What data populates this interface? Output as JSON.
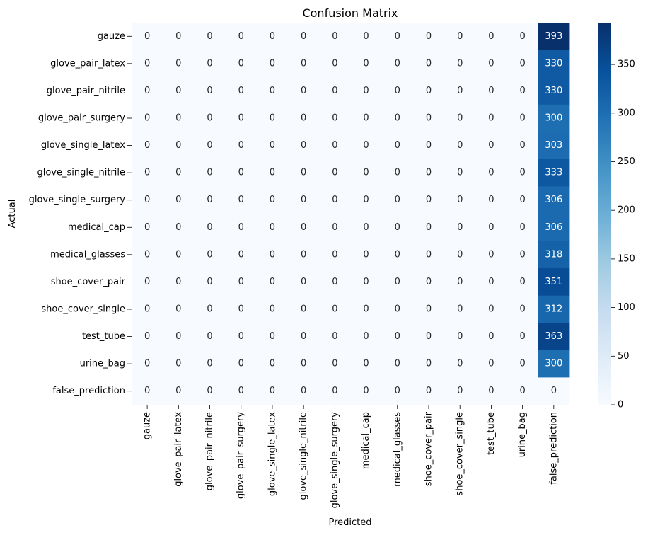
{
  "chart_data": {
    "type": "heatmap",
    "title": "Confusion Matrix",
    "xlabel": "Predicted",
    "ylabel": "Actual",
    "x_categories": [
      "gauze",
      "glove_pair_latex",
      "glove_pair_nitrile",
      "glove_pair_surgery",
      "glove_single_latex",
      "glove_single_nitrile",
      "glove_single_surgery",
      "medical_cap",
      "medical_glasses",
      "shoe_cover_pair",
      "shoe_cover_single",
      "test_tube",
      "urine_bag",
      "false_prediction"
    ],
    "y_categories": [
      "gauze",
      "glove_pair_latex",
      "glove_pair_nitrile",
      "glove_pair_surgery",
      "glove_single_latex",
      "glove_single_nitrile",
      "glove_single_surgery",
      "medical_cap",
      "medical_glasses",
      "shoe_cover_pair",
      "shoe_cover_single",
      "test_tube",
      "urine_bag",
      "false_prediction"
    ],
    "last_column_values": [
      393,
      330,
      330,
      300,
      303,
      333,
      306,
      306,
      318,
      351,
      312,
      363,
      300,
      0
    ],
    "colorbar": {
      "min": 0,
      "max": 393,
      "ticks": [
        0,
        50,
        100,
        150,
        200,
        250,
        300,
        350
      ]
    },
    "colormap": "Blues"
  }
}
